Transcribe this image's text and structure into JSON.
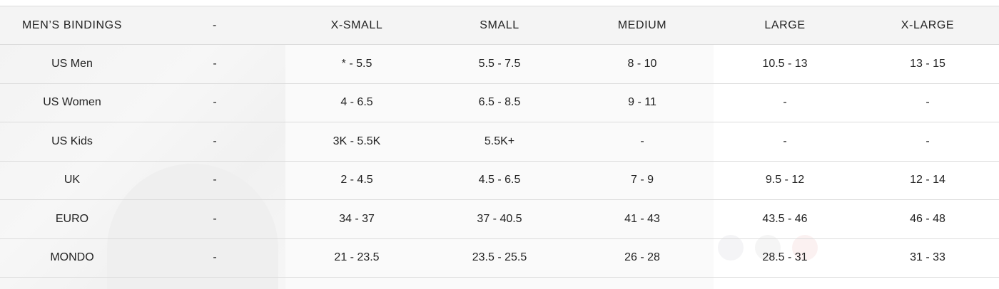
{
  "table": {
    "headers": [
      "MEN’S BINDINGS",
      "-",
      "X-SMALL",
      "SMALL",
      "MEDIUM",
      "LARGE",
      "X-LARGE"
    ],
    "rows": [
      [
        "US Men",
        "-",
        "* - 5.5",
        "5.5 - 7.5",
        "8 - 10",
        "10.5 - 13",
        "13 - 15"
      ],
      [
        "US Women",
        "-",
        "4 - 6.5",
        "6.5 - 8.5",
        "9 - 11",
        "-",
        "-"
      ],
      [
        "US Kids",
        "-",
        "3K - 5.5K",
        "5.5K+",
        "-",
        "-",
        "-"
      ],
      [
        "UK",
        "-",
        "2 - 4.5",
        "4.5 - 6.5",
        "7 - 9",
        "9.5 - 12",
        "12 - 14"
      ],
      [
        "EURO",
        "-",
        "34 - 37",
        "37 - 40.5",
        "41 - 43",
        "43.5 - 46",
        "46 - 48"
      ],
      [
        "MONDO",
        "-",
        "21 - 23.5",
        "23.5 - 25.5",
        "26 - 28",
        "28.5 - 31",
        "31 - 33"
      ]
    ]
  },
  "colors": {
    "header_bg": "#f4f4f4",
    "border": "#dcdcdc",
    "text": "#222222"
  }
}
